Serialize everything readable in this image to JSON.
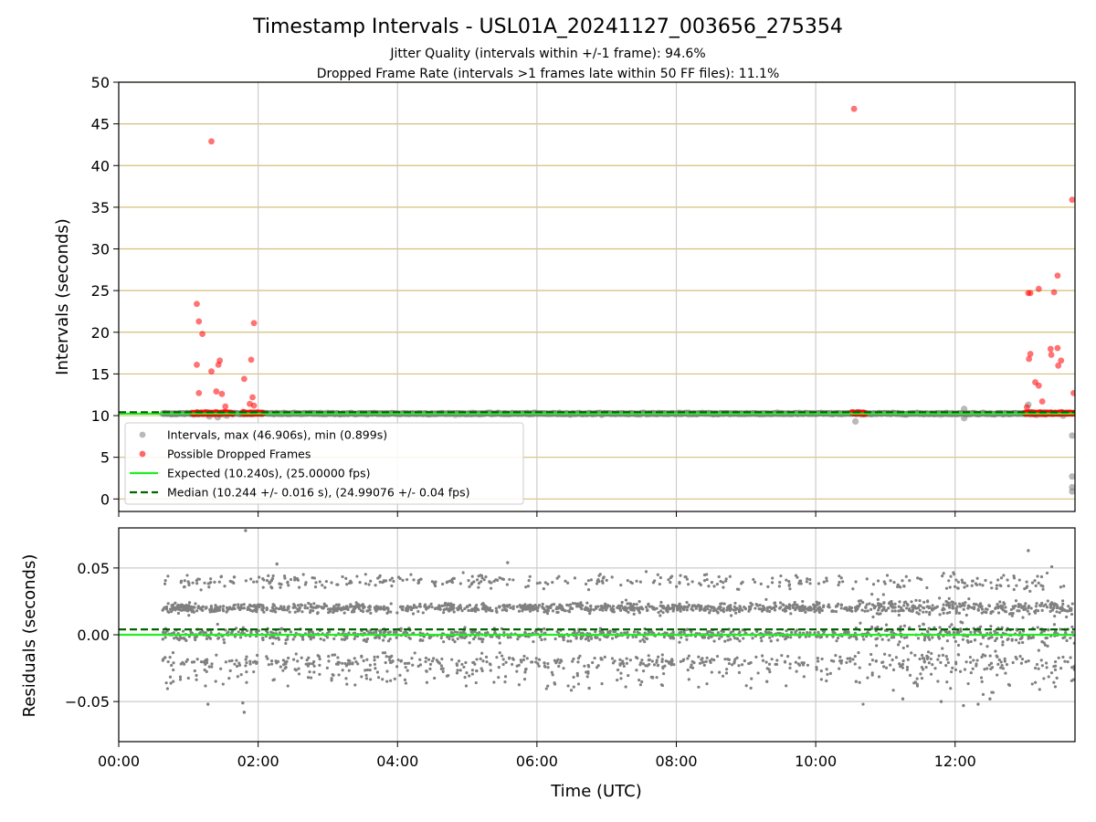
{
  "chart_data": [
    {
      "type": "scatter",
      "panel": "intervals",
      "title": "Timestamp Intervals - USL01A_20241127_003656_275354",
      "subtitle_lines": [
        "Jitter Quality (intervals within +/-1 frame): 94.6%",
        "Dropped Frame Rate (intervals >1 frames late within 50 FF files): 11.1%"
      ],
      "xlabel": "",
      "ylabel": "Intervals (seconds)",
      "xlim": [
        0,
        13.72
      ],
      "ylim": [
        -1.5,
        50
      ],
      "y_ticks": [
        0,
        5,
        10,
        15,
        20,
        25,
        30,
        35,
        40,
        45,
        50
      ],
      "x_ticks": [
        0,
        2,
        4,
        6,
        8,
        10,
        12
      ],
      "grid": {
        "x": true,
        "y": true,
        "y_color": "#d4bf7a",
        "x_color": "#cccccc"
      },
      "legend_position": "lower-left",
      "legend": [
        "Intervals, max (46.906s), min (0.899s)",
        "Possible Dropped Frames",
        "Expected (10.240s), (25.00000 fps)",
        "Median (10.244 +/- 0.016 s), (24.99076 +/- 0.04 fps)"
      ],
      "series": [
        {
          "name": "Intervals, max (46.906s), min (0.899s)",
          "color": "#808080",
          "band": {
            "x_start": 0.63,
            "x_end": 13.72,
            "y": 10.24
          },
          "points": [
            [
              1.3,
              9.9
            ],
            [
              1.42,
              9.8
            ],
            [
              1.55,
              10.0
            ],
            [
              10.57,
              9.3
            ],
            [
              12.13,
              9.7
            ],
            [
              12.13,
              10.8
            ],
            [
              13.05,
              11.3
            ],
            [
              13.68,
              7.6
            ],
            [
              13.68,
              2.7
            ],
            [
              13.68,
              1.4
            ],
            [
              13.68,
              0.9
            ],
            [
              13.55,
              10.0
            ]
          ]
        },
        {
          "name": "Possible Dropped Frames",
          "color": "#ff0000",
          "points": [
            [
              1.12,
              23.4
            ],
            [
              1.15,
              21.3
            ],
            [
              1.2,
              19.8
            ],
            [
              1.12,
              16.1
            ],
            [
              1.15,
              12.7
            ],
            [
              1.33,
              42.9
            ],
            [
              1.33,
              15.3
            ],
            [
              1.4,
              12.9
            ],
            [
              1.45,
              16.6
            ],
            [
              1.43,
              16.1
            ],
            [
              1.48,
              12.6
            ],
            [
              1.53,
              11.1
            ],
            [
              1.8,
              14.4
            ],
            [
              1.9,
              16.7
            ],
            [
              1.94,
              21.1
            ],
            [
              1.92,
              12.2
            ],
            [
              1.88,
              11.4
            ],
            [
              1.94,
              11.2
            ],
            [
              10.55,
              46.8
            ],
            [
              13.05,
              24.7
            ],
            [
              13.08,
              24.7
            ],
            [
              13.2,
              25.2
            ],
            [
              13.42,
              24.8
            ],
            [
              13.47,
              26.8
            ],
            [
              13.68,
              35.9
            ],
            [
              13.06,
              16.8
            ],
            [
              13.08,
              17.4
            ],
            [
              13.15,
              14.0
            ],
            [
              13.2,
              13.6
            ],
            [
              13.25,
              11.7
            ],
            [
              13.38,
              17.3
            ],
            [
              13.37,
              18.0
            ],
            [
              13.47,
              18.1
            ],
            [
              13.52,
              16.6
            ],
            [
              13.48,
              16.0
            ],
            [
              13.7,
              12.7
            ],
            [
              13.03,
              11.0
            ]
          ],
          "clusters": [
            {
              "x_start": 1.05,
              "x_end": 1.65,
              "y": 10.3
            },
            {
              "x_start": 1.77,
              "x_end": 2.08,
              "y": 10.3
            },
            {
              "x_start": 10.52,
              "x_end": 10.72,
              "y": 10.3
            },
            {
              "x_start": 13.0,
              "x_end": 13.72,
              "y": 10.3
            }
          ]
        },
        {
          "name": "Expected (10.240s), (25.00000 fps)",
          "color": "#22ee22",
          "y": 10.24
        },
        {
          "name": "Median (10.244 +/- 0.016 s), (24.99076 +/- 0.04 fps)",
          "color": "#006400",
          "y": 10.244
        }
      ]
    },
    {
      "type": "scatter",
      "panel": "residuals",
      "xlabel": "Time (UTC)",
      "ylabel": "Residuals (seconds)",
      "xlim": [
        0,
        13.72
      ],
      "ylim": [
        -0.08,
        0.08
      ],
      "y_ticks": [
        -0.05,
        0.0,
        0.05
      ],
      "y_tick_labels": [
        "−0.05",
        "0.00",
        "0.05"
      ],
      "x_ticks": [
        0,
        2,
        4,
        6,
        8,
        10,
        12
      ],
      "x_tick_labels": [
        "00:00",
        "02:00",
        "04:00",
        "06:00",
        "08:00",
        "10:00",
        "12:00"
      ],
      "grid": true,
      "point_color": "#808080",
      "residual_x_range": [
        0.63,
        13.72
      ],
      "residual_levels": [
        0.02,
        0.0,
        -0.02,
        0.04
      ],
      "median_offset": 0.004,
      "expected_offset": 0.0,
      "outliers": [
        [
          1.82,
          0.078
        ],
        [
          2.27,
          0.053
        ],
        [
          5.58,
          0.054
        ],
        [
          13.05,
          0.063
        ],
        [
          1.28,
          -0.052
        ],
        [
          1.8,
          -0.058
        ],
        [
          1.78,
          -0.051
        ],
        [
          11.25,
          -0.048
        ],
        [
          11.8,
          -0.05
        ],
        [
          12.12,
          -0.053
        ],
        [
          12.5,
          -0.048
        ],
        [
          6.75,
          -0.04
        ],
        [
          12.33,
          -0.052
        ],
        [
          10.58,
          -0.035
        ],
        [
          9.3,
          -0.035
        ]
      ]
    }
  ]
}
